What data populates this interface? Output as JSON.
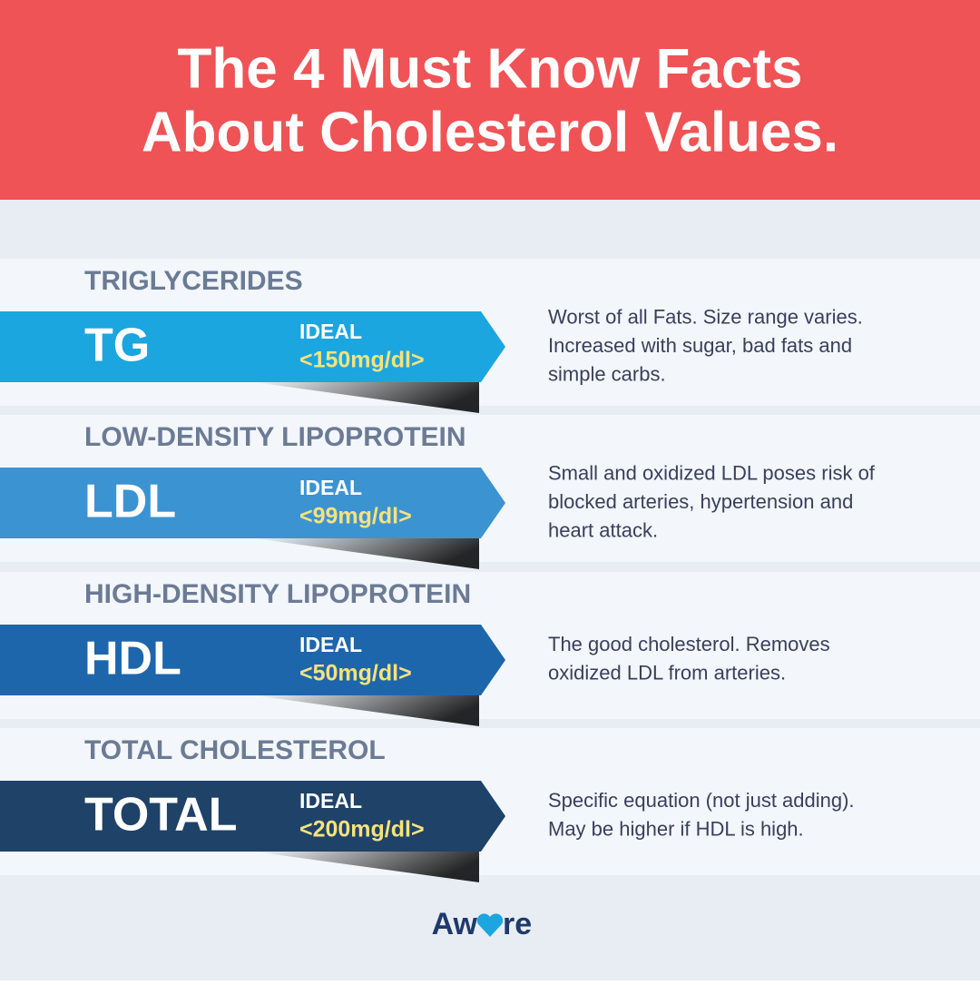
{
  "header": {
    "title": [
      "The 4 Must Know Facts",
      "About Cholesterol Values."
    ]
  },
  "items": [
    {
      "category": "TRIGLYCERIDES",
      "abbr": "TG",
      "ideal_label": "IDEAL",
      "ideal": "<150mg/dl>",
      "color": "#1ba6df",
      "description": [
        "Worst of all Fats. Size range varies.",
        "Increased with sugar, bad fats and",
        "simple carbs."
      ]
    },
    {
      "category": "LOW-DENSITY LIPOPROTEIN",
      "abbr": "LDL",
      "ideal_label": "IDEAL",
      "ideal": "<99mg/dl>",
      "color": "#3c93d2",
      "description": [
        "Small and oxidized LDL poses risk of",
        "blocked arteries, hypertension and",
        "heart attack."
      ]
    },
    {
      "category": "HIGH-DENSITY LIPOPROTEIN",
      "abbr": "HDL",
      "ideal_label": "IDEAL",
      "ideal": "<50mg/dl>",
      "color": "#1e66ab",
      "description": [
        "The good cholesterol. Removes",
        "oxidized LDL from arteries."
      ]
    },
    {
      "category": "TOTAL CHOLESTEROL",
      "abbr": "TOTAL",
      "ideal_label": "IDEAL",
      "ideal": "<200mg/dl>",
      "color": "#1f4268",
      "description": [
        "Specific equation (not just adding).",
        "May be higher if HDL is high."
      ]
    }
  ],
  "logo": {
    "left": "Aw",
    "right": "re"
  }
}
